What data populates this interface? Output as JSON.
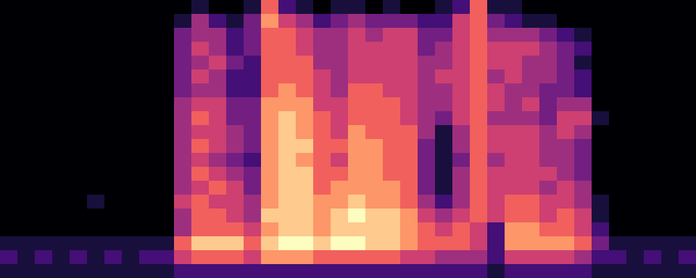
{
  "chart_data": {
    "type": "heatmap",
    "color": "magma",
    "tick_labels": false,
    "values": [
      [
        0,
        0,
        0,
        0,
        0,
        0,
        0,
        0,
        0,
        0,
        0,
        0,
        0,
        0,
        0,
        0,
        0,
        1,
        2,
        1
      ],
      [
        0,
        0,
        0,
        0,
        0,
        0,
        0,
        0,
        0,
        0,
        0,
        0,
        0,
        0,
        0,
        0,
        0,
        1,
        1,
        1
      ],
      [
        0,
        0,
        0,
        0,
        0,
        0,
        0,
        0,
        0,
        0,
        0,
        0,
        0,
        0,
        0,
        0,
        0,
        1,
        2,
        1
      ],
      [
        0,
        0,
        0,
        0,
        0,
        0,
        0,
        0,
        0,
        0,
        0,
        0,
        0,
        0,
        0,
        0,
        0,
        1,
        1,
        1
      ],
      [
        0,
        0,
        0,
        0,
        0,
        0,
        0,
        0,
        0,
        0,
        0,
        0,
        0,
        0,
        0,
        0,
        0,
        1,
        2,
        1
      ],
      [
        0,
        0,
        0,
        0,
        0,
        0,
        0,
        0,
        0,
        0,
        0,
        0,
        0,
        0,
        1,
        0,
        0,
        1,
        1,
        1
      ],
      [
        0,
        0,
        0,
        0,
        0,
        0,
        0,
        0,
        0,
        0,
        0,
        0,
        0,
        0,
        0,
        0,
        0,
        1,
        2,
        1
      ],
      [
        0,
        0,
        0,
        0,
        0,
        0,
        0,
        0,
        0,
        0,
        0,
        0,
        0,
        0,
        0,
        0,
        0,
        1,
        1,
        1
      ],
      [
        0,
        0,
        0,
        0,
        0,
        0,
        0,
        0,
        0,
        0,
        0,
        0,
        0,
        0,
        0,
        0,
        0,
        1,
        2,
        1
      ],
      [
        0,
        0,
        0,
        0,
        0,
        0,
        0,
        0,
        0,
        0,
        0,
        0,
        0,
        0,
        0,
        0,
        0,
        1,
        2,
        1
      ],
      [
        0,
        1,
        3,
        3,
        3,
        3,
        3,
        4,
        4,
        4,
        4,
        4,
        4,
        4,
        5,
        4,
        4,
        6,
        5,
        2
      ],
      [
        1,
        4,
        4,
        5,
        4,
        5,
        4,
        5,
        6,
        5,
        6,
        5,
        6,
        5,
        6,
        6,
        6,
        8,
        6,
        2
      ],
      [
        0,
        2,
        4,
        4,
        5,
        4,
        4,
        5,
        5,
        5,
        5,
        4,
        5,
        6,
        5,
        6,
        6,
        8,
        6,
        2
      ],
      [
        0,
        1,
        2,
        2,
        3,
        2,
        2,
        3,
        3,
        4,
        4,
        3,
        4,
        5,
        5,
        5,
        6,
        8,
        6,
        2
      ],
      [
        1,
        3,
        3,
        3,
        2,
        2,
        2,
        3,
        3,
        3,
        3,
        2,
        3,
        3,
        4,
        4,
        5,
        6,
        5,
        2
      ],
      [
        6,
        7,
        6,
        6,
        6,
        6,
        6,
        7,
        7,
        7,
        7,
        7,
        7,
        7,
        7,
        8,
        7,
        8,
        7,
        2
      ],
      [
        2,
        5,
        6,
        6,
        6,
        6,
        7,
        7,
        8,
        8,
        8,
        8,
        8,
        8,
        8,
        8,
        8,
        9,
        7,
        2
      ],
      [
        1,
        4,
        5,
        5,
        6,
        6,
        6,
        7,
        7,
        7,
        8,
        7,
        8,
        8,
        8,
        8,
        8,
        9,
        7,
        2
      ],
      [
        0,
        2,
        4,
        4,
        4,
        5,
        5,
        5,
        6,
        6,
        6,
        6,
        6,
        6,
        7,
        7,
        7,
        8,
        6,
        2
      ],
      [
        1,
        3,
        4,
        4,
        4,
        4,
        4,
        5,
        5,
        5,
        6,
        5,
        6,
        7,
        7,
        8,
        8,
        9,
        6,
        2
      ],
      [
        1,
        4,
        5,
        5,
        5,
        5,
        6,
        6,
        6,
        7,
        7,
        7,
        7,
        7,
        8,
        9,
        8,
        9,
        6,
        2
      ],
      [
        0,
        3,
        4,
        5,
        5,
        5,
        6,
        6,
        6,
        6,
        7,
        7,
        7,
        7,
        7,
        8,
        8,
        8,
        6,
        2
      ],
      [
        1,
        3,
        5,
        5,
        5,
        5,
        5,
        6,
        6,
        6,
        6,
        6,
        6,
        7,
        7,
        8,
        8,
        8,
        6,
        2
      ],
      [
        0,
        3,
        5,
        5,
        5,
        5,
        5,
        5,
        5,
        6,
        6,
        6,
        6,
        6,
        6,
        7,
        7,
        7,
        5,
        2
      ],
      [
        0,
        2,
        3,
        3,
        4,
        4,
        4,
        4,
        4,
        4,
        3,
        3,
        3,
        3,
        4,
        5,
        6,
        6,
        5,
        2
      ],
      [
        1,
        2,
        3,
        4,
        4,
        5,
        4,
        4,
        3,
        1,
        1,
        1,
        1,
        1,
        2,
        4,
        5,
        6,
        4,
        2
      ],
      [
        2,
        5,
        5,
        5,
        5,
        5,
        5,
        5,
        5,
        4,
        4,
        3,
        4,
        4,
        4,
        5,
        6,
        6,
        4,
        2
      ],
      [
        6,
        6,
        6,
        6,
        6,
        6,
        6,
        6,
        6,
        6,
        6,
        6,
        6,
        6,
        6,
        6,
        5,
        5,
        4,
        2
      ],
      [
        1,
        3,
        4,
        5,
        5,
        4,
        5,
        5,
        4,
        5,
        5,
        4,
        5,
        5,
        5,
        5,
        2,
        2,
        2,
        1
      ],
      [
        1,
        2,
        4,
        5,
        5,
        5,
        4,
        4,
        4,
        5,
        5,
        5,
        5,
        5,
        6,
        6,
        7,
        7,
        5,
        2
      ],
      [
        0,
        1,
        4,
        5,
        4,
        4,
        4,
        5,
        4,
        5,
        5,
        5,
        5,
        5,
        6,
        6,
        7,
        7,
        5,
        2
      ],
      [
        0,
        1,
        3,
        4,
        4,
        4,
        3,
        3,
        3,
        4,
        4,
        4,
        5,
        4,
        5,
        5,
        6,
        7,
        5,
        2
      ],
      [
        0,
        0,
        2,
        3,
        3,
        3,
        3,
        4,
        5,
        5,
        4,
        4,
        4,
        5,
        5,
        6,
        6,
        7,
        5,
        2
      ],
      [
        0,
        0,
        1,
        2,
        1,
        2,
        2,
        4,
        5,
        4,
        3,
        3,
        3,
        4,
        4,
        5,
        5,
        6,
        4,
        2
      ],
      [
        0,
        0,
        0,
        0,
        0,
        0,
        0,
        0,
        1,
        0,
        0,
        0,
        0,
        0,
        1,
        1,
        2,
        3,
        2,
        1
      ],
      [
        0,
        0,
        0,
        0,
        0,
        0,
        0,
        0,
        0,
        0,
        0,
        0,
        0,
        0,
        0,
        0,
        0,
        1,
        2,
        1
      ],
      [
        0,
        0,
        0,
        0,
        0,
        0,
        0,
        0,
        0,
        0,
        0,
        0,
        0,
        0,
        0,
        0,
        0,
        1,
        1,
        1
      ],
      [
        0,
        0,
        0,
        0,
        0,
        0,
        0,
        0,
        0,
        0,
        0,
        0,
        0,
        0,
        0,
        0,
        0,
        1,
        2,
        1
      ],
      [
        0,
        0,
        0,
        0,
        0,
        0,
        0,
        0,
        0,
        0,
        0,
        0,
        0,
        0,
        0,
        0,
        0,
        1,
        1,
        1
      ],
      [
        0,
        0,
        0,
        0,
        0,
        0,
        0,
        0,
        0,
        0,
        0,
        0,
        0,
        0,
        0,
        0,
        0,
        1,
        2,
        1
      ]
    ]
  }
}
